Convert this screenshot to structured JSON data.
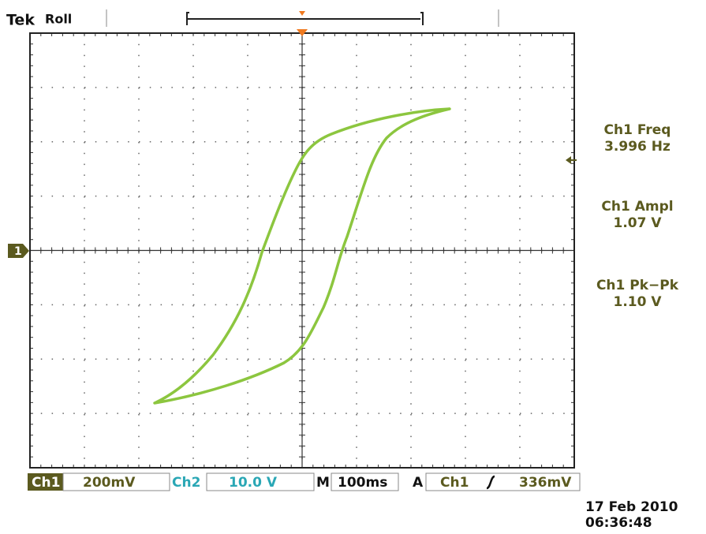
{
  "header": {
    "brand": "Tek",
    "mode": "Roll"
  },
  "channel_marker": "1",
  "measurements": [
    {
      "label": "Ch1 Freq",
      "value": "3.996 Hz"
    },
    {
      "label": "Ch1 Ampl",
      "value": "1.07 V"
    },
    {
      "label": "Ch1 Pk−Pk",
      "value": "1.10 V"
    }
  ],
  "status_bar": {
    "ch1": "Ch1",
    "ch1_scale": "200mV",
    "ch2": "Ch2",
    "ch2_scale": "10.0 V",
    "m": "M",
    "timebase": "100ms",
    "a": "A",
    "trigger_source": "Ch1",
    "trigger_level": "336mV"
  },
  "timestamp": {
    "date": "17 Feb 2010",
    "time": "06:36:48"
  }
}
